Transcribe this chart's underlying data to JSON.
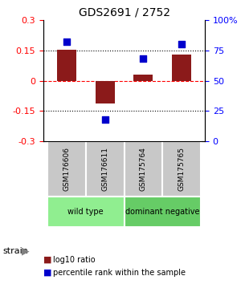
{
  "title": "GDS2691 / 2752",
  "samples": [
    "GSM176606",
    "GSM176611",
    "GSM175764",
    "GSM175765"
  ],
  "log10_ratio": [
    0.152,
    -0.112,
    0.03,
    0.128
  ],
  "percentile_rank": [
    82,
    18,
    68,
    80
  ],
  "ylim_left": [
    -0.3,
    0.3
  ],
  "ylim_right": [
    0,
    100
  ],
  "yticks_left": [
    -0.3,
    -0.15,
    0,
    0.15,
    0.3
  ],
  "yticks_right": [
    0,
    25,
    50,
    75,
    100
  ],
  "yticklabels_right": [
    "0",
    "25",
    "50",
    "75",
    "100%"
  ],
  "bar_color": "#8B1A1A",
  "dot_color": "#0000CC",
  "groups": [
    {
      "label": "wild type",
      "indices": [
        0,
        1
      ],
      "color": "#90EE90"
    },
    {
      "label": "dominant negative",
      "indices": [
        2,
        3
      ],
      "color": "#66CC66"
    }
  ],
  "strain_label": "strain",
  "legend_bar_label": "log10 ratio",
  "legend_dot_label": "percentile rank within the sample",
  "bar_width": 0.5,
  "dot_size": 40
}
